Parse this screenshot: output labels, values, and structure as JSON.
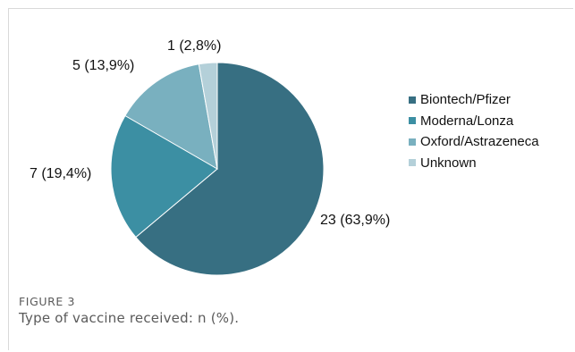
{
  "chart_data": {
    "type": "pie",
    "categories": [
      "Biontech/Pfizer",
      "Moderna/Lonza",
      "Oxford/Astrazeneca",
      "Unknown"
    ],
    "values": [
      23,
      7,
      5,
      1
    ],
    "data_labels": [
      "23 (63,9%)",
      "7 (19,4%)",
      "5 (13,9%)",
      "1 (2,8%)"
    ],
    "colors": [
      "#376f82",
      "#3c8fa3",
      "#79b0bf",
      "#b4d0d9"
    ],
    "legend_position": "right",
    "title": ""
  },
  "caption": {
    "label": "FIGURE 3",
    "text": "Type of vaccine received: n (%)."
  }
}
